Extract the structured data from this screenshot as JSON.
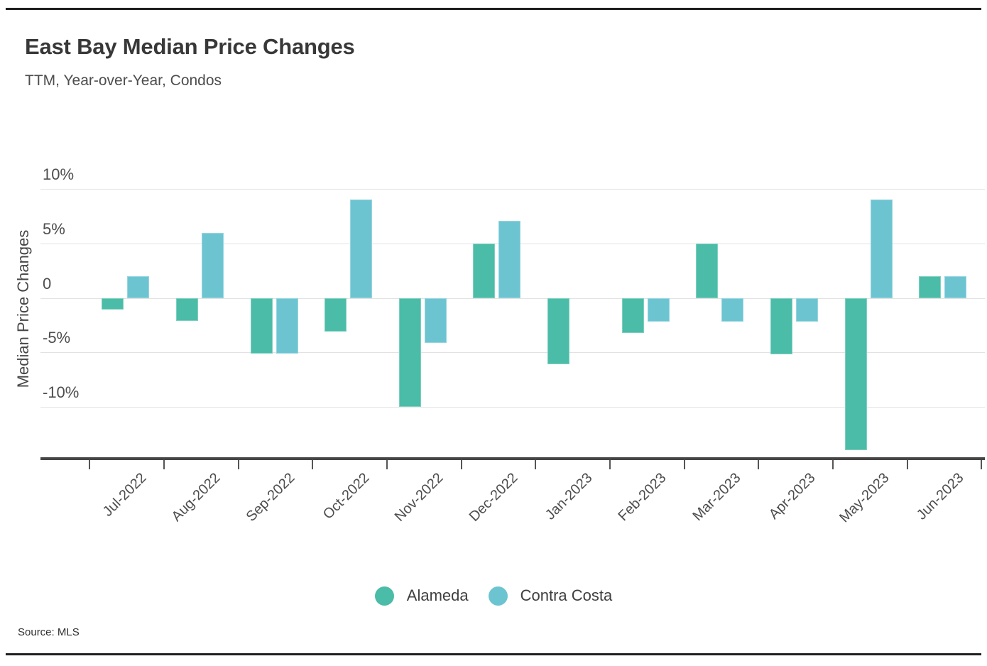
{
  "chart_data": {
    "type": "bar",
    "title": "East Bay Median Price Changes",
    "subtitle": "TTM, Year-over-Year, Condos",
    "ylabel": "Median Price Changes",
    "source": "Source: MLS",
    "categories": [
      "Jul-2022",
      "Aug-2022",
      "Sep-2022",
      "Oct-2022",
      "Nov-2022",
      "Dec-2022",
      "Jan-2023",
      "Feb-2023",
      "Mar-2023",
      "Apr-2023",
      "May-2023",
      "Jun-2023"
    ],
    "series": [
      {
        "name": "Alameda",
        "color": "#4ABCA7",
        "values": [
          -1.1,
          -2.1,
          -5.1,
          -3.1,
          -10.0,
          5.0,
          -6.1,
          -3.2,
          5.0,
          -5.2,
          -14.0,
          2.0
        ]
      },
      {
        "name": "Contra Costa",
        "color": "#6CC4D1",
        "values": [
          2.0,
          6.0,
          -5.1,
          9.0,
          -4.1,
          7.1,
          null,
          -2.2,
          -2.2,
          -2.2,
          9.0,
          2.0
        ]
      }
    ],
    "y_ticks": [
      {
        "value": 10,
        "label": "10%"
      },
      {
        "value": 5,
        "label": "5%"
      },
      {
        "value": 0,
        "label": "0"
      },
      {
        "value": -5,
        "label": "-5%"
      },
      {
        "value": -10,
        "label": "-10%"
      }
    ],
    "ylim": [
      -14.8,
      11.5
    ],
    "grid": true,
    "legend_position": "bottom",
    "unit": "%"
  },
  "legend": [
    {
      "label": "Alameda",
      "color": "#4ABCA7"
    },
    {
      "label": "Contra Costa",
      "color": "#6CC4D1"
    }
  ]
}
